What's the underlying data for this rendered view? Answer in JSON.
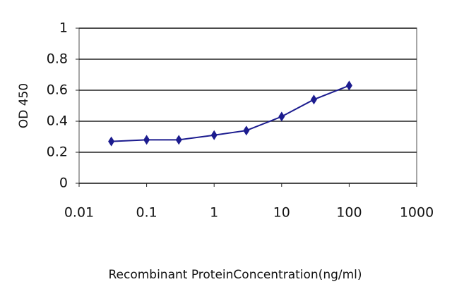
{
  "chart_data": {
    "type": "line",
    "x_label": "Recombinant ProteinConcentration(ng/ml)",
    "y_label": "OD 450",
    "x": [
      0.03,
      0.1,
      0.3,
      1,
      3,
      10,
      30,
      100
    ],
    "series": [
      {
        "color": "#1c1c8f",
        "values": [
          0.27,
          0.28,
          0.28,
          0.31,
          0.34,
          0.43,
          0.54,
          0.63
        ]
      }
    ],
    "xlim": [
      0.01,
      1000
    ],
    "xticks": [
      0.01,
      0.1,
      1,
      10,
      100,
      1000
    ],
    "x_log": true,
    "ylim": [
      0,
      1
    ],
    "yticks": [
      0,
      0.2,
      0.4,
      0.6,
      0.8,
      1
    ],
    "grid": true
  }
}
